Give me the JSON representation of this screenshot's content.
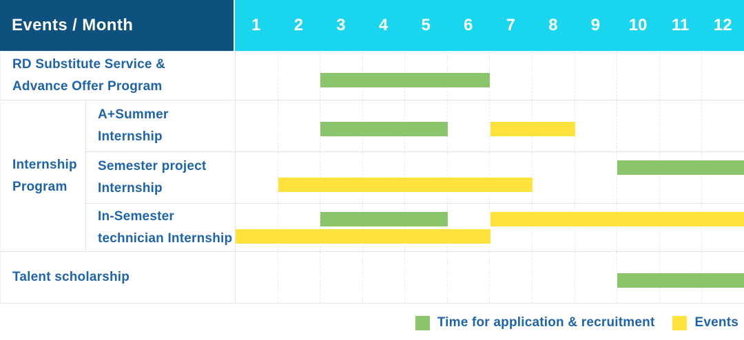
{
  "header": {
    "title": "Events / Month",
    "months": [
      "1",
      "2",
      "3",
      "4",
      "5",
      "6",
      "7",
      "8",
      "9",
      "10",
      "11",
      "12"
    ]
  },
  "colors": {
    "header_bg": "#0d517f",
    "months_bg": "#19d5ee",
    "header_text": "#ffffff",
    "label_text": "#1d64ab",
    "application_green": "#8ac46b",
    "event_yellow": "#ffe23c",
    "grid_line": "#e6e8ec",
    "row_border": "#e0e2e6"
  },
  "groups": {
    "internship_program": {
      "label_lines": [
        "Internship",
        "Program"
      ]
    }
  },
  "legend": {
    "items": [
      {
        "key": "application",
        "label": "Time for application & recruitment",
        "color": "#8ac46b"
      },
      {
        "key": "event",
        "label": "Events",
        "color": "#ffe23c"
      }
    ]
  },
  "chart_data": {
    "type": "bar",
    "subtype": "gantt-schedule",
    "title": "Events / Month",
    "x_unit": "month",
    "x_ticks": [
      1,
      2,
      3,
      4,
      5,
      6,
      7,
      8,
      9,
      10,
      11,
      12
    ],
    "xlim": [
      1,
      12
    ],
    "grid": "dashed-vertical",
    "legend_position": "bottom-right",
    "series_legend": {
      "application": "Time for application & recruitment",
      "event": "Events"
    },
    "rows": [
      {
        "group": null,
        "label": "RD Substitute Service & Advance Offer Program",
        "label_lines": [
          "RD Substitute Service &",
          "Advance Offer Program"
        ],
        "lines": [
          [
            {
              "type": "application",
              "start_month": 3,
              "end_month": 6
            }
          ]
        ]
      },
      {
        "group": "Internship Program",
        "label": "A+Summer Internship",
        "label_lines": [
          "A+Summer",
          "Internship"
        ],
        "lines": [
          [
            {
              "type": "application",
              "start_month": 3,
              "end_month": 5
            },
            {
              "type": "event",
              "start_month": 7,
              "end_month": 8
            }
          ]
        ]
      },
      {
        "group": "Internship Program",
        "label": "Semester project Internship",
        "label_lines": [
          "Semester project",
          "Internship"
        ],
        "lines": [
          [
            {
              "type": "application",
              "start_month": 10,
              "end_month": 12
            }
          ],
          [
            {
              "type": "event",
              "start_month": 2,
              "end_month": 7
            }
          ]
        ]
      },
      {
        "group": "Internship Program",
        "label": "In-Semester technician Internship",
        "label_lines": [
          "In-Semester",
          "technician Internship"
        ],
        "lines": [
          [
            {
              "type": "application",
              "start_month": 3,
              "end_month": 5
            },
            {
              "type": "event",
              "start_month": 7,
              "end_month": 12
            }
          ],
          [
            {
              "type": "event",
              "start_month": 1,
              "end_month": 6
            }
          ]
        ]
      },
      {
        "group": null,
        "label": "Talent scholarship",
        "label_lines": [
          "Talent scholarship"
        ],
        "lines": [
          [
            {
              "type": "application",
              "start_month": 10,
              "end_month": 12
            }
          ]
        ]
      }
    ]
  }
}
